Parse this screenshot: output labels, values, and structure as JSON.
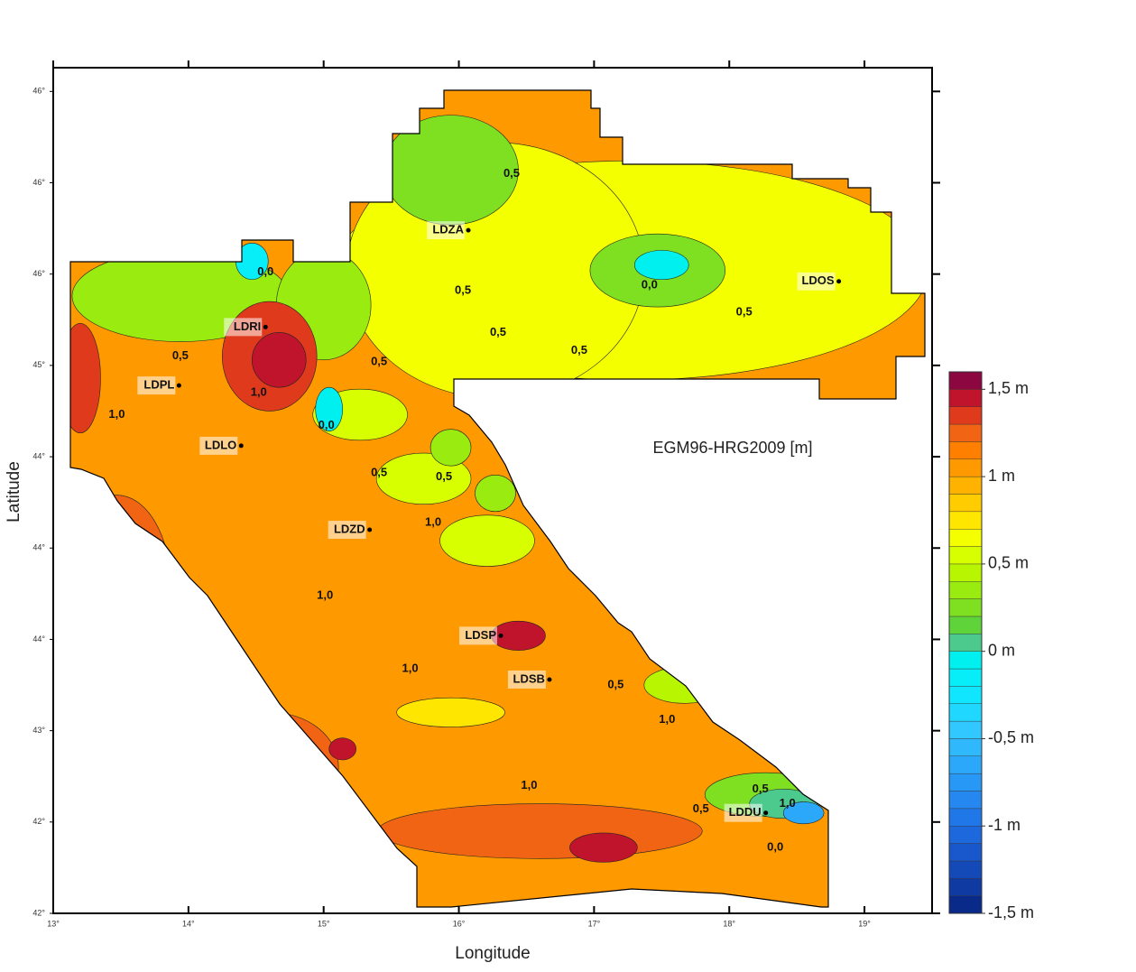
{
  "chart_data": {
    "type": "contour",
    "title": "EGM96-HRG2009 [m]",
    "x_label": "Longitude",
    "y_label": "Latitude",
    "xlim": [
      13,
      19.5
    ],
    "ylim": [
      42,
      46.63
    ],
    "xticks": [
      {
        "value": 13,
        "label": "13°"
      },
      {
        "value": 14,
        "label": "14°"
      },
      {
        "value": 15,
        "label": "15°"
      },
      {
        "value": 16,
        "label": "16°"
      },
      {
        "value": 17,
        "label": "17°"
      },
      {
        "value": 18,
        "label": "18°"
      },
      {
        "value": 19,
        "label": "19°"
      }
    ],
    "yticks": [
      {
        "value": 42,
        "label": "42°"
      },
      {
        "value": 42.5,
        "label": "42°"
      },
      {
        "value": 43,
        "label": "43°"
      },
      {
        "value": 43.5,
        "label": "44°"
      },
      {
        "value": 44,
        "label": "44°"
      },
      {
        "value": 44.5,
        "label": "44°"
      },
      {
        "value": 45,
        "label": "45°"
      },
      {
        "value": 45.5,
        "label": "46°"
      },
      {
        "value": 46,
        "label": "46°"
      },
      {
        "value": 46.5,
        "label": "46°"
      }
    ],
    "base_value": 1.0,
    "field": [
      {
        "lon": 17.27,
        "lat": 45.52,
        "rx": 2.2,
        "ry": 0.6,
        "value": 0.65
      },
      {
        "lon": 16.27,
        "lat": 45.52,
        "rx": 1.1,
        "ry": 0.7,
        "value": 0.6
      },
      {
        "lon": 15.27,
        "lat": 44.73,
        "rx": 0.35,
        "ry": 0.14,
        "value": 0.55
      },
      {
        "lon": 15.74,
        "lat": 44.38,
        "rx": 0.35,
        "ry": 0.14,
        "value": 0.55
      },
      {
        "lon": 16.21,
        "lat": 44.04,
        "rx": 0.35,
        "ry": 0.14,
        "value": 0.55
      },
      {
        "lon": 15.94,
        "lat": 44.55,
        "rx": 0.15,
        "ry": 0.1,
        "value": 0.35
      },
      {
        "lon": 16.27,
        "lat": 44.3,
        "rx": 0.15,
        "ry": 0.1,
        "value": 0.35
      },
      {
        "lon": 13.94,
        "lat": 45.38,
        "rx": 0.8,
        "ry": 0.25,
        "value": 0.3
      },
      {
        "lon": 15.0,
        "lat": 45.33,
        "rx": 0.35,
        "ry": 0.3,
        "value": 0.3
      },
      {
        "lon": 15.94,
        "lat": 46.07,
        "rx": 0.5,
        "ry": 0.3,
        "value": 0.25
      },
      {
        "lon": 17.47,
        "lat": 45.52,
        "rx": 0.5,
        "ry": 0.2,
        "value": 0.2
      },
      {
        "lon": 17.5,
        "lat": 45.55,
        "rx": 0.2,
        "ry": 0.08,
        "value": -0.05
      },
      {
        "lon": 14.47,
        "lat": 45.57,
        "rx": 0.12,
        "ry": 0.1,
        "value": -0.2
      },
      {
        "lon": 15.04,
        "lat": 44.76,
        "rx": 0.1,
        "ry": 0.12,
        "value": -0.05
      },
      {
        "lon": 14.6,
        "lat": 45.05,
        "rx": 0.35,
        "ry": 0.3,
        "value": 1.3
      },
      {
        "lon": 14.67,
        "lat": 45.03,
        "rx": 0.2,
        "ry": 0.15,
        "value": 1.45
      },
      {
        "lon": 13.2,
        "lat": 44.93,
        "rx": 0.15,
        "ry": 0.3,
        "value": 1.3
      },
      {
        "lon": 13.47,
        "lat": 43.79,
        "rx": 0.4,
        "ry": 0.5,
        "value": 1.25
      },
      {
        "lon": 14.61,
        "lat": 42.8,
        "rx": 0.5,
        "ry": 0.3,
        "value": 1.25
      },
      {
        "lon": 15.14,
        "lat": 42.9,
        "rx": 0.1,
        "ry": 0.06,
        "value": 1.45
      },
      {
        "lon": 16.6,
        "lat": 42.45,
        "rx": 1.2,
        "ry": 0.15,
        "value": 1.25
      },
      {
        "lon": 17.07,
        "lat": 42.36,
        "rx": 0.25,
        "ry": 0.08,
        "value": 1.45
      },
      {
        "lon": 16.44,
        "lat": 43.52,
        "rx": 0.2,
        "ry": 0.08,
        "value": 1.4
      },
      {
        "lon": 15.94,
        "lat": 43.1,
        "rx": 0.4,
        "ry": 0.08,
        "value": 0.75
      },
      {
        "lon": 17.67,
        "lat": 43.25,
        "rx": 0.3,
        "ry": 0.1,
        "value": 0.4
      },
      {
        "lon": 18.27,
        "lat": 42.65,
        "rx": 0.45,
        "ry": 0.12,
        "value": 0.2
      },
      {
        "lon": 18.4,
        "lat": 42.6,
        "rx": 0.25,
        "ry": 0.08,
        "value": 0.0
      },
      {
        "lon": 18.55,
        "lat": 42.55,
        "rx": 0.15,
        "ry": 0.06,
        "value": -0.7
      }
    ],
    "contour_labels": [
      {
        "value": 0.0,
        "label": "0,0",
        "lon": 14.57,
        "lat": 45.51
      },
      {
        "value": 0.5,
        "label": "0,5",
        "lon": 16.39,
        "lat": 46.05
      },
      {
        "value": 0.5,
        "label": "0,5",
        "lon": 16.03,
        "lat": 45.41
      },
      {
        "value": 0.0,
        "label": "0,0",
        "lon": 17.41,
        "lat": 45.44
      },
      {
        "value": 0.5,
        "label": "0,5",
        "lon": 18.11,
        "lat": 45.29
      },
      {
        "value": 0.5,
        "label": "0,5",
        "lon": 16.29,
        "lat": 45.18
      },
      {
        "value": 0.5,
        "label": "0,5",
        "lon": 16.89,
        "lat": 45.08
      },
      {
        "value": 0.5,
        "label": "0,5",
        "lon": 13.94,
        "lat": 45.05
      },
      {
        "value": 0.5,
        "label": "0,5",
        "lon": 15.41,
        "lat": 45.02
      },
      {
        "value": 1.0,
        "label": "1,0",
        "lon": 14.52,
        "lat": 44.85
      },
      {
        "value": 1.0,
        "label": "1,0",
        "lon": 13.47,
        "lat": 44.73
      },
      {
        "value": 0.0,
        "label": "0,0",
        "lon": 15.02,
        "lat": 44.67
      },
      {
        "value": 0.5,
        "label": "0,5",
        "lon": 15.41,
        "lat": 44.41
      },
      {
        "value": 0.5,
        "label": "0,5",
        "lon": 15.89,
        "lat": 44.39
      },
      {
        "value": 1.0,
        "label": "1,0",
        "lon": 15.81,
        "lat": 44.14
      },
      {
        "value": 1.0,
        "label": "1,0",
        "lon": 15.01,
        "lat": 43.74
      },
      {
        "value": 1.0,
        "label": "1,0",
        "lon": 15.64,
        "lat": 43.34
      },
      {
        "value": 0.5,
        "label": "0,5",
        "lon": 17.16,
        "lat": 43.25
      },
      {
        "value": 1.0,
        "label": "1,0",
        "lon": 17.54,
        "lat": 43.06
      },
      {
        "value": 1.0,
        "label": "1,0",
        "lon": 16.52,
        "lat": 42.7
      },
      {
        "value": 0.5,
        "label": "0,5",
        "lon": 17.79,
        "lat": 42.57
      },
      {
        "value": 0.5,
        "label": "0,5",
        "lon": 18.23,
        "lat": 42.68
      },
      {
        "value": 1.0,
        "label": "1,0",
        "lon": 18.43,
        "lat": 42.6
      },
      {
        "value": 0.0,
        "label": "0,0",
        "lon": 18.34,
        "lat": 42.36
      }
    ],
    "stations": [
      {
        "name": "LDZA",
        "lon": 16.07,
        "lat": 45.74
      },
      {
        "name": "LDOS",
        "lon": 18.81,
        "lat": 45.46
      },
      {
        "name": "LDRI",
        "lon": 14.57,
        "lat": 45.21
      },
      {
        "name": "LDPL",
        "lon": 13.93,
        "lat": 44.89
      },
      {
        "name": "LDLO",
        "lon": 14.39,
        "lat": 44.56
      },
      {
        "name": "LDZD",
        "lon": 15.34,
        "lat": 44.1
      },
      {
        "name": "LDSP",
        "lon": 16.31,
        "lat": 43.52
      },
      {
        "name": "LDSB",
        "lon": 16.67,
        "lat": 43.28
      },
      {
        "name": "LDDU",
        "lon": 18.27,
        "lat": 42.55
      }
    ],
    "colorbar": {
      "lim": [
        -1.5,
        1.6
      ],
      "colors": [
        "#0a2a8a",
        "#0f3aa2",
        "#1449b8",
        "#1858cc",
        "#1c68dc",
        "#2078e8",
        "#2488f0",
        "#2898f6",
        "#2ca8fa",
        "#30b8fc",
        "#30c8fe",
        "#20d8ff",
        "#10e6ff",
        "#08eef8",
        "#00f0f0",
        "#4cc98c",
        "#5fd43a",
        "#7ee020",
        "#9aeb10",
        "#b8f500",
        "#d8ff00",
        "#f4ff00",
        "#ffe600",
        "#ffcc00",
        "#ffb300",
        "#ff9900",
        "#ff8000",
        "#f06414",
        "#e03a1c",
        "#c0142c",
        "#8c0640"
      ],
      "ticks": [
        {
          "value": 1.5,
          "label": "1,5 m"
        },
        {
          "value": 1,
          "label": "1 m"
        },
        {
          "value": 0.5,
          "label": "0,5 m"
        },
        {
          "value": 0,
          "label": "0 m"
        },
        {
          "value": -0.5,
          "label": "-0,5 m"
        },
        {
          "value": -1,
          "label": "-1 m"
        },
        {
          "value": -1.5,
          "label": "-1,5 m"
        }
      ]
    }
  }
}
